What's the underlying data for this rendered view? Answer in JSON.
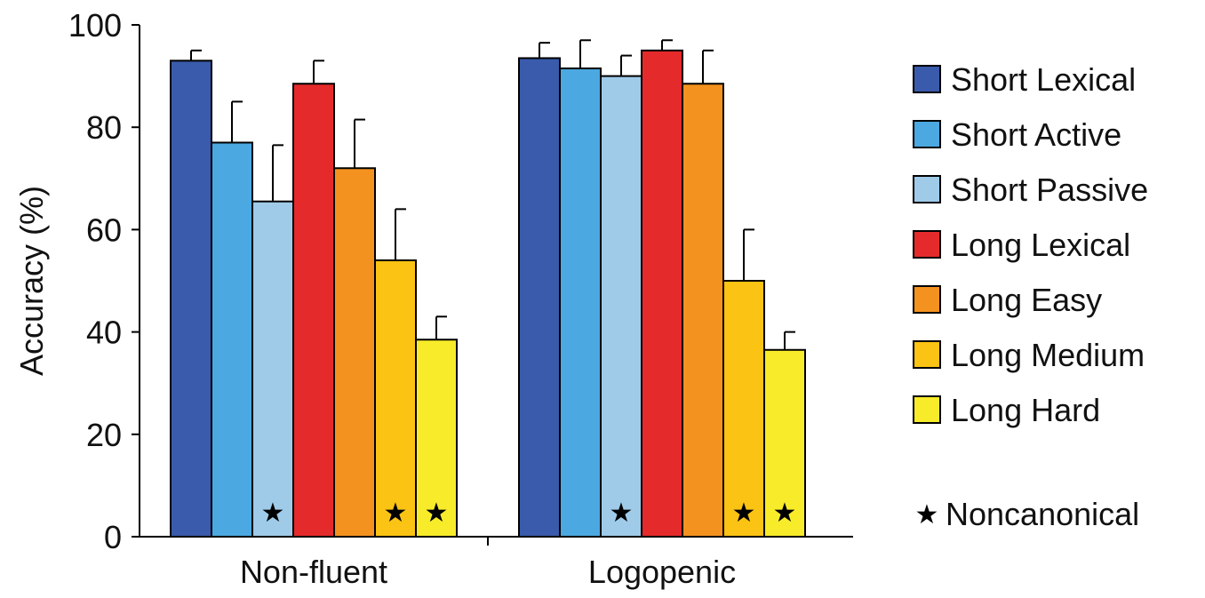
{
  "chart_data": {
    "type": "bar",
    "categories": [
      "Non-fluent",
      "Logopenic"
    ],
    "ylabel": "Accuracy (%)",
    "xlabel": "",
    "ylim": [
      0,
      100
    ],
    "yticks": [
      0,
      20,
      40,
      60,
      80,
      100
    ],
    "grid": false,
    "legend_position": "right",
    "series": [
      {
        "name": "Short Lexical",
        "color": "#3a5bab",
        "values": [
          93,
          93.5
        ],
        "errors": [
          2,
          3
        ],
        "noncanonical": false
      },
      {
        "name": "Short Active",
        "color": "#4ba8e0",
        "values": [
          77,
          91.5
        ],
        "errors": [
          8,
          5.5
        ],
        "noncanonical": false
      },
      {
        "name": "Short Passive",
        "color": "#9fcbe9",
        "values": [
          65.5,
          90
        ],
        "errors": [
          11,
          4
        ],
        "noncanonical": true
      },
      {
        "name": "Long Lexical",
        "color": "#e42a2a",
        "values": [
          88.5,
          95
        ],
        "errors": [
          4.5,
          2
        ],
        "noncanonical": false
      },
      {
        "name": "Long Easy",
        "color": "#f4921f",
        "values": [
          72,
          88.5
        ],
        "errors": [
          9.5,
          6.5
        ],
        "noncanonical": false
      },
      {
        "name": "Long Medium",
        "color": "#fbc313",
        "values": [
          54,
          50
        ],
        "errors": [
          10,
          10
        ],
        "noncanonical": true
      },
      {
        "name": "Long Hard",
        "color": "#f8ec2a",
        "values": [
          38.5,
          36.5
        ],
        "errors": [
          4.5,
          3.5
        ],
        "noncanonical": true
      }
    ],
    "noncanonical_marker": {
      "symbol": "★",
      "label": "Noncanonical"
    }
  }
}
